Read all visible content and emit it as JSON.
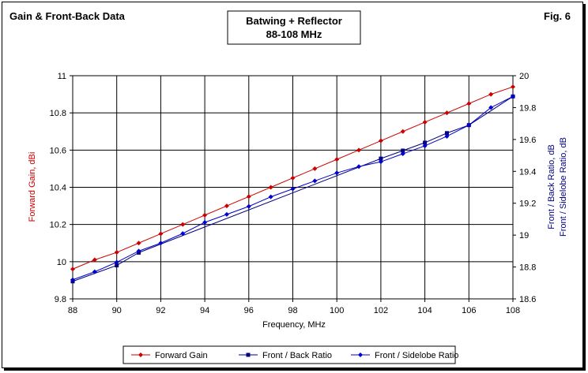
{
  "header": {
    "left": "Gain & Front-Back Data",
    "right": "Fig. 6"
  },
  "chart_data": {
    "type": "line",
    "title_lines": [
      "Batwing + Reflector",
      "88-108 MHz"
    ],
    "xlabel": "Frequency, MHz",
    "ylabel_left": "Forward Gain, dBi",
    "ylabel_right_lines": [
      "Front / Back Ratio,  dB",
      "Front / Sidelobe Ratio,  dB"
    ],
    "x": [
      88,
      89,
      90,
      91,
      92,
      93,
      94,
      95,
      96,
      97,
      98,
      99,
      100,
      101,
      102,
      103,
      104,
      105,
      106,
      107,
      108
    ],
    "xlim": [
      88,
      108
    ],
    "xticks": [
      88,
      90,
      92,
      94,
      96,
      98,
      100,
      102,
      104,
      106,
      108
    ],
    "ylim_left": [
      9.8,
      11
    ],
    "yticks_left": [
      "9.8",
      "10",
      "10.2",
      "10.4",
      "10.6",
      "10.8",
      "11"
    ],
    "ylim_right": [
      18.6,
      20
    ],
    "yticks_right": [
      "18.6",
      "18.8",
      "19",
      "19.2",
      "19.4",
      "19.6",
      "19.8",
      "20"
    ],
    "grid": true,
    "legend_position": "bottom",
    "series": [
      {
        "name": "Forward Gain",
        "axis": "left",
        "color": "#cc0000",
        "marker": "diamond",
        "values": [
          9.96,
          10.01,
          10.05,
          10.1,
          10.15,
          10.2,
          10.25,
          10.3,
          10.35,
          10.4,
          10.45,
          10.5,
          10.55,
          10.6,
          10.65,
          10.7,
          10.75,
          10.8,
          10.85,
          10.9,
          10.94
        ]
      },
      {
        "name": "Front / Back Ratio",
        "axis": "right",
        "color": "#000080",
        "marker": "square",
        "values": [
          18.71,
          null,
          18.81,
          18.89,
          null,
          null,
          null,
          null,
          null,
          null,
          null,
          null,
          null,
          null,
          19.48,
          19.53,
          19.58,
          19.64,
          19.69,
          null,
          19.87
        ]
      },
      {
        "name": "Front / Sidelobe Ratio",
        "axis": "right",
        "color": "#0000cc",
        "marker": "diamond",
        "values": [
          18.72,
          18.77,
          18.83,
          18.9,
          18.95,
          19.01,
          19.08,
          19.13,
          19.18,
          19.24,
          19.29,
          19.34,
          19.39,
          19.43,
          19.46,
          19.51,
          19.56,
          19.62,
          19.69,
          19.8,
          19.87
        ]
      }
    ]
  }
}
